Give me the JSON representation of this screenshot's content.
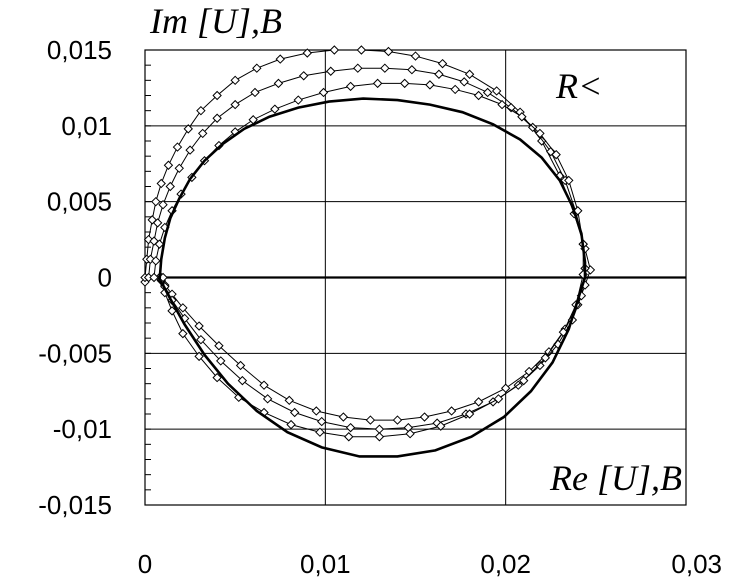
{
  "chart_data": {
    "type": "line",
    "xlabel": "Re [U],B",
    "ylabel": "Im [U],B",
    "annotation": "R<",
    "xlim": [
      0,
      0.03
    ],
    "ylim": [
      -0.015,
      0.015
    ],
    "x_ticks": [
      "0",
      "0,01",
      "0,02",
      "0,03"
    ],
    "y_ticks": [
      "0,015",
      "0,01",
      "0,005",
      "0",
      "-0,005",
      "-0,01",
      "-0,015"
    ],
    "grid": true,
    "series": [
      {
        "markers": true,
        "x": [
          0.0,
          0.0,
          0.0001,
          0.0002,
          0.0004,
          0.0006,
          0.0009,
          0.0013,
          0.0018,
          0.0024,
          0.0031,
          0.004,
          0.005,
          0.0062,
          0.0075,
          0.009,
          0.0105,
          0.012,
          0.0135,
          0.015,
          0.0165,
          0.018,
          0.0195,
          0.0208,
          0.022,
          0.023,
          0.0238,
          0.0244,
          0.0247,
          0.0244,
          0.024,
          0.0233,
          0.0224,
          0.0213,
          0.02,
          0.0185,
          0.017,
          0.0155,
          0.014,
          0.0125,
          0.011,
          0.0095,
          0.008,
          0.0066,
          0.0053,
          0.0041,
          0.003,
          0.0021,
          0.0015,
          0.0011,
          0.0009,
          0.0008
        ],
        "y": [
          -0.0003,
          0.0,
          0.0012,
          0.0025,
          0.0038,
          0.005,
          0.0062,
          0.0074,
          0.0086,
          0.0098,
          0.011,
          0.012,
          0.013,
          0.0138,
          0.0144,
          0.0148,
          0.015,
          0.015,
          0.0149,
          0.0146,
          0.0141,
          0.0134,
          0.0123,
          0.0109,
          0.009,
          0.0067,
          0.0042,
          0.0019,
          0.0005,
          -0.0005,
          -0.0018,
          -0.0034,
          -0.0049,
          -0.0062,
          -0.0073,
          -0.0082,
          -0.0088,
          -0.0092,
          -0.0094,
          -0.0094,
          -0.0092,
          -0.0088,
          -0.0081,
          -0.0071,
          -0.0058,
          -0.0045,
          -0.0032,
          -0.002,
          -0.0011,
          -0.0005,
          -0.0002,
          0.0
        ]
      },
      {
        "markers": true,
        "x": [
          0.0002,
          0.0003,
          0.0005,
          0.0007,
          0.001,
          0.0014,
          0.0019,
          0.0025,
          0.0032,
          0.004,
          0.005,
          0.0061,
          0.0074,
          0.0088,
          0.0103,
          0.0118,
          0.0133,
          0.0148,
          0.0163,
          0.0177,
          0.019,
          0.0203,
          0.0215,
          0.0225,
          0.0233,
          0.0239,
          0.0243,
          0.0244,
          0.0242,
          0.0237,
          0.0229,
          0.0219,
          0.0207,
          0.0193,
          0.0178,
          0.0162,
          0.0146,
          0.013,
          0.0114,
          0.0098,
          0.0083,
          0.0068,
          0.0054,
          0.0042,
          0.0031,
          0.0022,
          0.0015,
          0.0011,
          0.0009
        ],
        "y": [
          0.0,
          0.0012,
          0.0024,
          0.0036,
          0.0048,
          0.006,
          0.0072,
          0.0084,
          0.0095,
          0.0105,
          0.0114,
          0.0122,
          0.0128,
          0.0133,
          0.0136,
          0.0138,
          0.0138,
          0.0137,
          0.0134,
          0.0129,
          0.0122,
          0.0112,
          0.0099,
          0.0083,
          0.0064,
          0.0043,
          0.0022,
          0.0006,
          -0.0012,
          -0.0028,
          -0.0044,
          -0.0058,
          -0.0071,
          -0.0082,
          -0.009,
          -0.0096,
          -0.0099,
          -0.01,
          -0.0099,
          -0.0095,
          -0.0089,
          -0.008,
          -0.0068,
          -0.0055,
          -0.0041,
          -0.0027,
          -0.0015,
          -0.0006,
          0.0
        ]
      },
      {
        "markers": true,
        "x": [
          0.0005,
          0.0006,
          0.0008,
          0.0011,
          0.0015,
          0.002,
          0.0026,
          0.0033,
          0.0041,
          0.005,
          0.006,
          0.0072,
          0.0085,
          0.0099,
          0.0114,
          0.0129,
          0.0144,
          0.0158,
          0.0172,
          0.0185,
          0.0198,
          0.0209,
          0.0219,
          0.0228,
          0.0235,
          0.024,
          0.0243,
          0.0243,
          0.0239,
          0.0232,
          0.0222,
          0.021,
          0.0196,
          0.018,
          0.0164,
          0.0147,
          0.013,
          0.0113,
          0.0097,
          0.0081,
          0.0066,
          0.0052,
          0.004,
          0.003,
          0.0021,
          0.0015,
          0.0011,
          0.001
        ],
        "y": [
          0.0,
          0.0011,
          0.0022,
          0.0033,
          0.0044,
          0.0055,
          0.0066,
          0.0077,
          0.0087,
          0.0096,
          0.0104,
          0.0111,
          0.0117,
          0.0122,
          0.0126,
          0.0128,
          0.0128,
          0.0127,
          0.0124,
          0.012,
          0.0114,
          0.0106,
          0.0095,
          0.0081,
          0.0064,
          0.0044,
          0.0022,
          0.0002,
          -0.0018,
          -0.0036,
          -0.0053,
          -0.0068,
          -0.008,
          -0.009,
          -0.0098,
          -0.0103,
          -0.0105,
          -0.0105,
          -0.0102,
          -0.0097,
          -0.0089,
          -0.0079,
          -0.0066,
          -0.0052,
          -0.0037,
          -0.0022,
          -0.001,
          0.0
        ]
      },
      {
        "markers": false,
        "x": [
          0.0008,
          0.00082,
          0.0009,
          0.0011,
          0.0014,
          0.0019,
          0.0025,
          0.0033,
          0.0043,
          0.0055,
          0.0069,
          0.0085,
          0.0102,
          0.0121,
          0.014,
          0.0158,
          0.0176,
          0.0193,
          0.0208,
          0.022,
          0.023,
          0.0237,
          0.0242,
          0.0244,
          0.0244,
          0.0241,
          0.0235,
          0.0226,
          0.0214,
          0.0199,
          0.0181,
          0.0161,
          0.014,
          0.0119,
          0.0098,
          0.0079,
          0.0062,
          0.0046,
          0.0033,
          0.0022,
          0.0014,
          0.001,
          0.0008
        ],
        "y": [
          -0.0002,
          0.0,
          0.0012,
          0.0026,
          0.0039,
          0.0052,
          0.0065,
          0.0077,
          0.0088,
          0.0098,
          0.0106,
          0.0112,
          0.0116,
          0.0118,
          0.0117,
          0.0114,
          0.0109,
          0.0101,
          0.0091,
          0.0079,
          0.0064,
          0.0047,
          0.0029,
          0.001,
          0.0,
          -0.0011,
          -0.0034,
          -0.0056,
          -0.0075,
          -0.0092,
          -0.0105,
          -0.0114,
          -0.0118,
          -0.0118,
          -0.0112,
          -0.0102,
          -0.0088,
          -0.007,
          -0.0051,
          -0.0031,
          -0.0014,
          -0.0005,
          -0.0002
        ]
      }
    ]
  }
}
